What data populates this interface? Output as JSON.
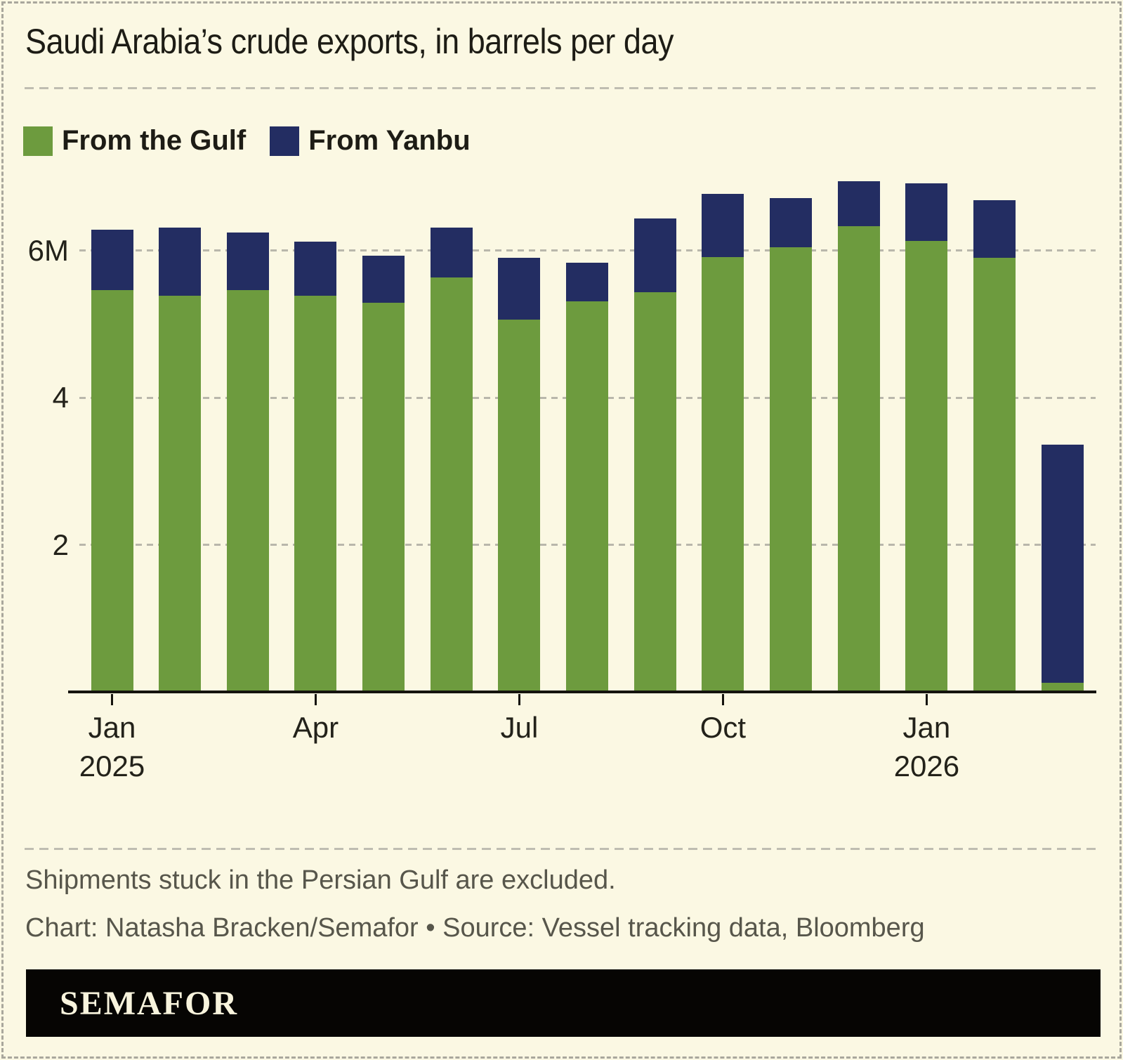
{
  "title": "Saudi Arabia’s crude exports, in barrels per day",
  "legend": {
    "items": [
      {
        "label": "From the Gulf",
        "color": "#6d9b3e"
      },
      {
        "label": "From Yanbu",
        "color": "#232d62"
      }
    ]
  },
  "chart_data": {
    "type": "bar",
    "stacked": true,
    "title": "Saudi Arabia’s crude exports, in barrels per day",
    "unit": "million barrels per day",
    "categories": [
      "Jan 2025",
      "Feb 2025",
      "Mar 2025",
      "Apr 2025",
      "May 2025",
      "Jun 2025",
      "Jul 2025",
      "Aug 2025",
      "Sep 2025",
      "Oct 2025",
      "Nov 2025",
      "Dec 2025",
      "Jan 2026",
      "Feb 2026",
      "Mar 2026"
    ],
    "series": [
      {
        "name": "From the Gulf",
        "color": "#6d9b3e",
        "values": [
          5.46,
          5.38,
          5.46,
          5.38,
          5.29,
          5.63,
          5.06,
          5.31,
          5.43,
          5.91,
          6.04,
          6.33,
          6.13,
          5.9,
          0.12
        ]
      },
      {
        "name": "From Yanbu",
        "color": "#232d62",
        "values": [
          0.82,
          0.93,
          0.78,
          0.74,
          0.64,
          0.68,
          0.84,
          0.52,
          1.0,
          0.86,
          0.67,
          0.61,
          0.78,
          0.78,
          3.24
        ]
      }
    ],
    "y_ticks": [
      {
        "value": 6,
        "label": "6M"
      },
      {
        "value": 4,
        "label": "4"
      },
      {
        "value": 2,
        "label": "2"
      }
    ],
    "x_ticks": [
      {
        "index": 0,
        "label": "Jan\n2025"
      },
      {
        "index": 3,
        "label": "Apr"
      },
      {
        "index": 6,
        "label": "Jul"
      },
      {
        "index": 9,
        "label": "Oct"
      },
      {
        "index": 12,
        "label": "Jan\n2026"
      }
    ],
    "ylim": [
      0,
      7.2
    ],
    "grid": "dashed-horizontal",
    "legend_position": "top-left"
  },
  "footnote": "Shipments stuck in the Persian Gulf are excluded.",
  "credit": "Chart: Natasha Bracken/Semafor • Source: Vessel tracking data, Bloomberg",
  "logo": "SEMAFOR",
  "colors": {
    "background": "#fbf8e3",
    "gulf_green": "#6d9b3e",
    "yanbu_navy": "#232d62",
    "gridline": "#b9b7ab",
    "axis": "#15140e",
    "text_dark": "#1d1c15",
    "text_muted": "#57564b",
    "logo_bar": "#060503",
    "logo_text": "#f8f4dd",
    "border_dash": "#a9a79c"
  }
}
